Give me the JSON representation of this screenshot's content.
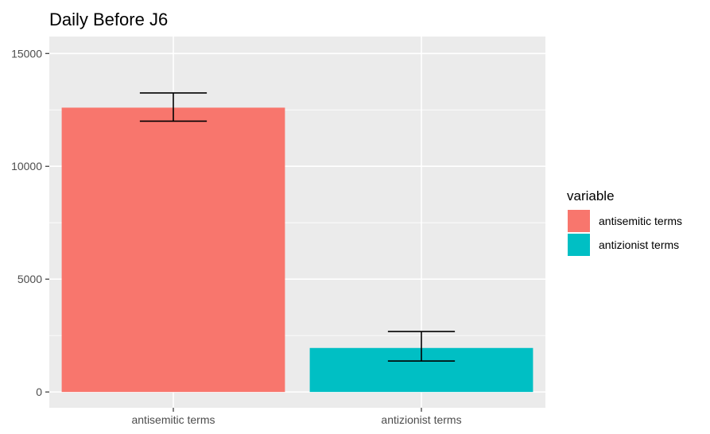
{
  "chart_data": {
    "type": "bar",
    "title": "Daily Before J6",
    "xlabel": "",
    "ylabel": "",
    "categories": [
      "antisemitic terms",
      "antizionist terms"
    ],
    "values": [
      12600,
      1950
    ],
    "error_bars": [
      {
        "lower": 12000,
        "upper": 13250
      },
      {
        "lower": 1370,
        "upper": 2680
      }
    ],
    "colors": [
      "#F8766D",
      "#00BFC4"
    ],
    "ylim": [
      -700,
      15750
    ],
    "yticks": [
      0,
      5000,
      10000,
      15000
    ],
    "ytick_labels": [
      "0",
      "5000",
      "10000",
      "15000"
    ],
    "grid": true,
    "legend": {
      "title": "variable",
      "placement": "right",
      "entries": [
        "antisemitic terms",
        "antizionist terms"
      ]
    }
  }
}
